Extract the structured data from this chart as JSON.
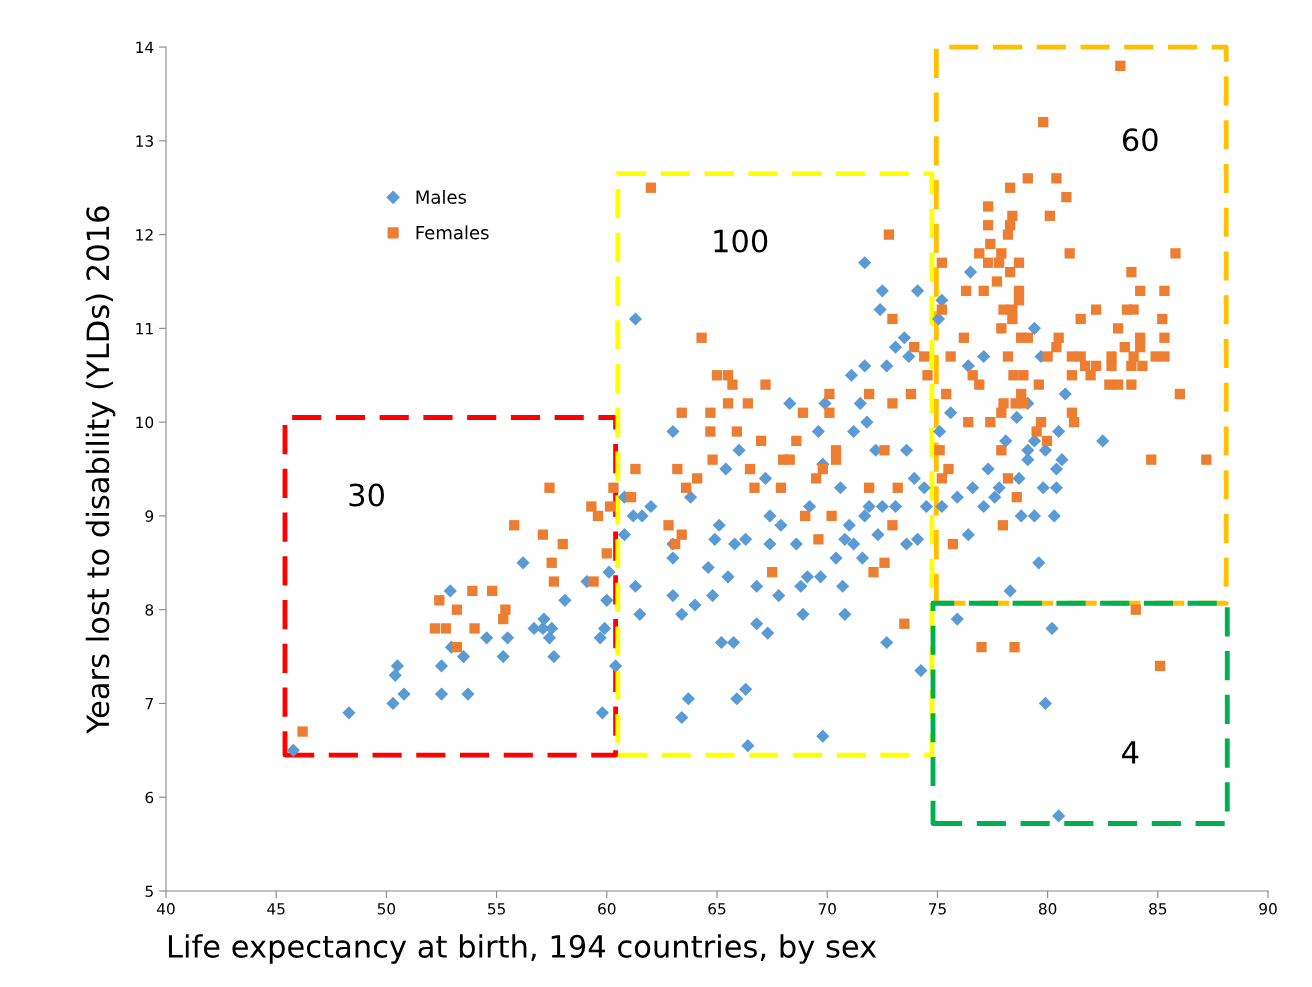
{
  "chart_data": {
    "type": "scatter",
    "xlabel": "Life expectancy at birth, 194 countries, by sex",
    "ylabel": "Years lost to disability (YLDs) 2016",
    "xlim": [
      40,
      90
    ],
    "xticks": [
      40,
      45,
      50,
      55,
      60,
      65,
      70,
      75,
      80,
      85,
      90
    ],
    "ylim": [
      5,
      14
    ],
    "yticks": [
      5,
      6,
      7,
      8,
      9,
      10,
      11,
      12,
      13,
      14
    ],
    "grid": false,
    "legend": "top left",
    "series": [
      {
        "name": "Males",
        "marker": "diamond",
        "color": "#5b9bd5",
        "x": [
          45.78,
          48.3,
          50.3,
          50.4,
          50.5,
          50.8,
          52.5,
          52.5,
          52.9,
          52.95,
          53.5,
          53.7,
          54.55,
          55.5,
          55.3,
          56.2,
          56.7,
          57.15,
          57.1,
          57.5,
          57.4,
          57.6,
          58.1,
          59.1,
          60.1,
          60.0,
          59.9,
          59.7,
          59.8,
          60.4,
          60.8,
          60.8,
          61.3,
          71.7,
          72.5,
          74.1,
          72.4,
          73.5,
          73.1,
          73.7,
          71.7,
          72.7,
          71.1,
          68.3,
          69.9,
          71.5,
          71.8,
          63.0,
          69.6,
          71.2,
          66.0,
          72.2,
          73.6,
          65.4,
          69.8,
          67.2,
          70.6,
          73.95,
          63.8,
          62.0,
          61.2,
          61.6,
          67.4,
          69.2,
          71.9,
          72.5,
          73.1,
          74.5,
          65.1,
          67.9,
          71.0,
          71.7,
          64.9,
          66.3,
          70.8,
          72.3,
          74.1,
          63.0,
          65.8,
          67.4,
          68.6,
          71.2,
          73.6,
          63.0,
          64.6,
          70.4,
          71.6,
          65.5,
          69.1,
          69.7,
          61.3,
          66.8,
          68.8,
          70.7,
          63.0,
          64.8,
          67.8,
          61.5,
          63.4,
          64.0,
          68.9,
          70.8,
          66.8,
          67.3,
          65.2,
          65.75,
          72.7,
          74.25,
          63.7,
          63.4,
          65.9,
          66.3,
          66.4,
          69.8,
          76.5,
          75.2,
          75.05,
          79.4,
          77.1,
          76.4,
          79.7,
          80.8,
          79.1,
          75.6,
          78.6,
          75.1,
          78.1,
          79.4,
          80.5,
          82.5,
          79.1,
          79.9,
          79.1,
          80.65,
          77.3,
          80.4,
          78.7,
          74.4,
          76.6,
          77.8,
          79.8,
          80.4,
          75.9,
          77.6,
          75.2,
          77.1,
          78.8,
          79.4,
          80.3,
          76.4,
          79.6,
          78.3,
          75.9,
          80.2,
          79.9,
          80.5
        ],
        "values": [
          6.5,
          6.9,
          7.0,
          7.3,
          7.4,
          7.1,
          7.4,
          7.1,
          8.2,
          7.6,
          7.5,
          7.1,
          7.7,
          7.7,
          7.5,
          8.5,
          7.8,
          7.9,
          7.8,
          7.8,
          7.7,
          7.5,
          8.1,
          8.3,
          8.4,
          8.1,
          7.8,
          7.7,
          6.9,
          7.4,
          8.8,
          9.2,
          11.1,
          11.7,
          11.4,
          11.4,
          11.2,
          10.9,
          10.8,
          10.7,
          10.6,
          10.6,
          10.5,
          10.2,
          10.2,
          10.2,
          10.0,
          9.9,
          9.9,
          9.9,
          9.7,
          9.7,
          9.7,
          9.5,
          9.55,
          9.4,
          9.3,
          9.4,
          9.2,
          9.1,
          9.0,
          9.0,
          9.0,
          9.1,
          9.1,
          9.1,
          9.1,
          9.1,
          8.9,
          8.9,
          8.9,
          9.0,
          8.75,
          8.75,
          8.75,
          8.8,
          8.75,
          8.7,
          8.7,
          8.7,
          8.7,
          8.7,
          8.7,
          8.55,
          8.45,
          8.55,
          8.55,
          8.35,
          8.35,
          8.35,
          8.25,
          8.25,
          8.25,
          8.25,
          8.15,
          8.15,
          8.15,
          7.95,
          7.95,
          8.05,
          7.95,
          7.95,
          7.85,
          7.75,
          7.65,
          7.65,
          7.65,
          7.35,
          7.05,
          6.85,
          7.05,
          7.15,
          6.55,
          6.65,
          11.6,
          11.3,
          11.1,
          11.0,
          10.7,
          10.6,
          10.7,
          10.3,
          10.2,
          10.1,
          10.05,
          9.9,
          9.8,
          9.8,
          9.9,
          9.8,
          9.7,
          9.7,
          9.6,
          9.6,
          9.5,
          9.5,
          9.4,
          9.3,
          9.3,
          9.3,
          9.3,
          9.3,
          9.2,
          9.2,
          9.1,
          9.1,
          9.0,
          9.0,
          9.0,
          8.8,
          8.5,
          8.2,
          7.9,
          7.8,
          7.0,
          5.8
        ]
      },
      {
        "name": "Females",
        "marker": "square",
        "color": "#ed7d31",
        "x": [
          46.2,
          52.4,
          52.2,
          52.7,
          53.2,
          53.2,
          53.9,
          54.8,
          54.0,
          55.4,
          55.3,
          55.8,
          57.4,
          57.1,
          58.0,
          57.5,
          57.6,
          59.3,
          59.6,
          59.4,
          60.0,
          60.3,
          60.15,
          62.0,
          64.3,
          65.0,
          65.5,
          65.7,
          67.2,
          63.4,
          64.7,
          65.5,
          66.4,
          68.9,
          70.1,
          70.1,
          64.7,
          65.9,
          67.0,
          68.6,
          64.8,
          68.0,
          68.3,
          70.4,
          70.4,
          61.3,
          63.2,
          66.5,
          64.1,
          69.8,
          69.5,
          63.6,
          66.7,
          67.9,
          61.1,
          71.9,
          73.2,
          72.8,
          72.96,
          73.95,
          74.4,
          74.55,
          71.9,
          72.96,
          73.8,
          72.6,
          69.0,
          70.2,
          62.8,
          63.4,
          63.1,
          69.6,
          72.96,
          67.5,
          72.1,
          72.6,
          73.5,
          83.3,
          79.8,
          79.1,
          80.4,
          78.3,
          80.85,
          80.1,
          77.3,
          77.3,
          78.4,
          78.3,
          78.2,
          77.4,
          76.9,
          77.9,
          81.0,
          85.8,
          75.2,
          77.3,
          77.8,
          78.7,
          78.3,
          83.8,
          77.7,
          76.3,
          77.1,
          78.7,
          84.2,
          85.3,
          78.7,
          78.0,
          78.4,
          82.2,
          83.6,
          83.9,
          75.2,
          78.4,
          81.5,
          85.2,
          77.9,
          83.2,
          76.2,
          78.8,
          79.1,
          80.5,
          84.2,
          85.3,
          80.4,
          83.5,
          84.2,
          75.6,
          78.2,
          80.0,
          81.1,
          81.5,
          82.9,
          84.9,
          85.3,
          83.9,
          76.6,
          78.45,
          81.7,
          82.2,
          82.9,
          83.8,
          84.3,
          76.9,
          78.9,
          79.6,
          81.1,
          81.95,
          82.8,
          83.2,
          83.8,
          75.4,
          86.0,
          78.8,
          78.0,
          78.55,
          78.9,
          77.9,
          81.1,
          76.4,
          77.4,
          81.2,
          79.7,
          79.5,
          79.97,
          75.1,
          77.9,
          84.7,
          87.2,
          75.5,
          78.2,
          75.2,
          78.6,
          77.97,
          75.7,
          77.0,
          78.5,
          84.0,
          85.1
        ],
        "values": [
          6.7,
          8.1,
          7.8,
          7.8,
          8.0,
          7.6,
          8.2,
          8.2,
          7.8,
          8.0,
          7.9,
          8.9,
          9.3,
          8.8,
          8.7,
          8.5,
          8.3,
          9.1,
          9.0,
          8.3,
          8.6,
          9.3,
          9.1,
          12.5,
          10.9,
          10.5,
          10.5,
          10.4,
          10.4,
          10.1,
          10.1,
          10.2,
          10.2,
          10.1,
          10.3,
          10.1,
          9.9,
          9.9,
          9.8,
          9.8,
          9.6,
          9.6,
          9.6,
          9.7,
          9.6,
          9.5,
          9.5,
          9.5,
          9.4,
          9.5,
          9.4,
          9.3,
          9.3,
          9.3,
          9.2,
          9.3,
          9.3,
          12.0,
          11.1,
          10.8,
          10.7,
          10.5,
          10.3,
          10.2,
          10.3,
          9.7,
          9.0,
          9.0,
          8.9,
          8.8,
          8.7,
          8.75,
          8.9,
          8.4,
          8.4,
          8.5,
          7.85,
          13.8,
          13.2,
          12.6,
          12.6,
          12.5,
          12.4,
          12.2,
          12.3,
          12.1,
          12.2,
          12.1,
          12.0,
          11.9,
          11.8,
          11.8,
          11.8,
          11.8,
          11.7,
          11.7,
          11.7,
          11.7,
          11.6,
          11.6,
          11.5,
          11.4,
          11.4,
          11.4,
          11.4,
          11.4,
          11.3,
          11.2,
          11.2,
          11.2,
          11.2,
          11.2,
          11.2,
          11.1,
          11.1,
          11.1,
          11.0,
          11.0,
          10.9,
          10.9,
          10.9,
          10.9,
          10.9,
          10.9,
          10.8,
          10.8,
          10.8,
          10.7,
          10.7,
          10.7,
          10.7,
          10.7,
          10.7,
          10.7,
          10.7,
          10.7,
          10.5,
          10.5,
          10.6,
          10.6,
          10.6,
          10.6,
          10.6,
          10.4,
          10.5,
          10.4,
          10.5,
          10.5,
          10.4,
          10.4,
          10.4,
          10.3,
          10.3,
          10.3,
          10.2,
          10.2,
          10.2,
          10.1,
          10.1,
          10.0,
          10.0,
          10.0,
          10.0,
          9.9,
          9.8,
          9.7,
          9.7,
          9.6,
          9.6,
          9.5,
          9.4,
          9.4,
          9.2,
          8.9,
          8.7,
          7.6,
          7.6,
          8.0,
          7.4
        ]
      }
    ],
    "annotations": [
      "30",
      "100",
      "60",
      "4"
    ]
  }
}
